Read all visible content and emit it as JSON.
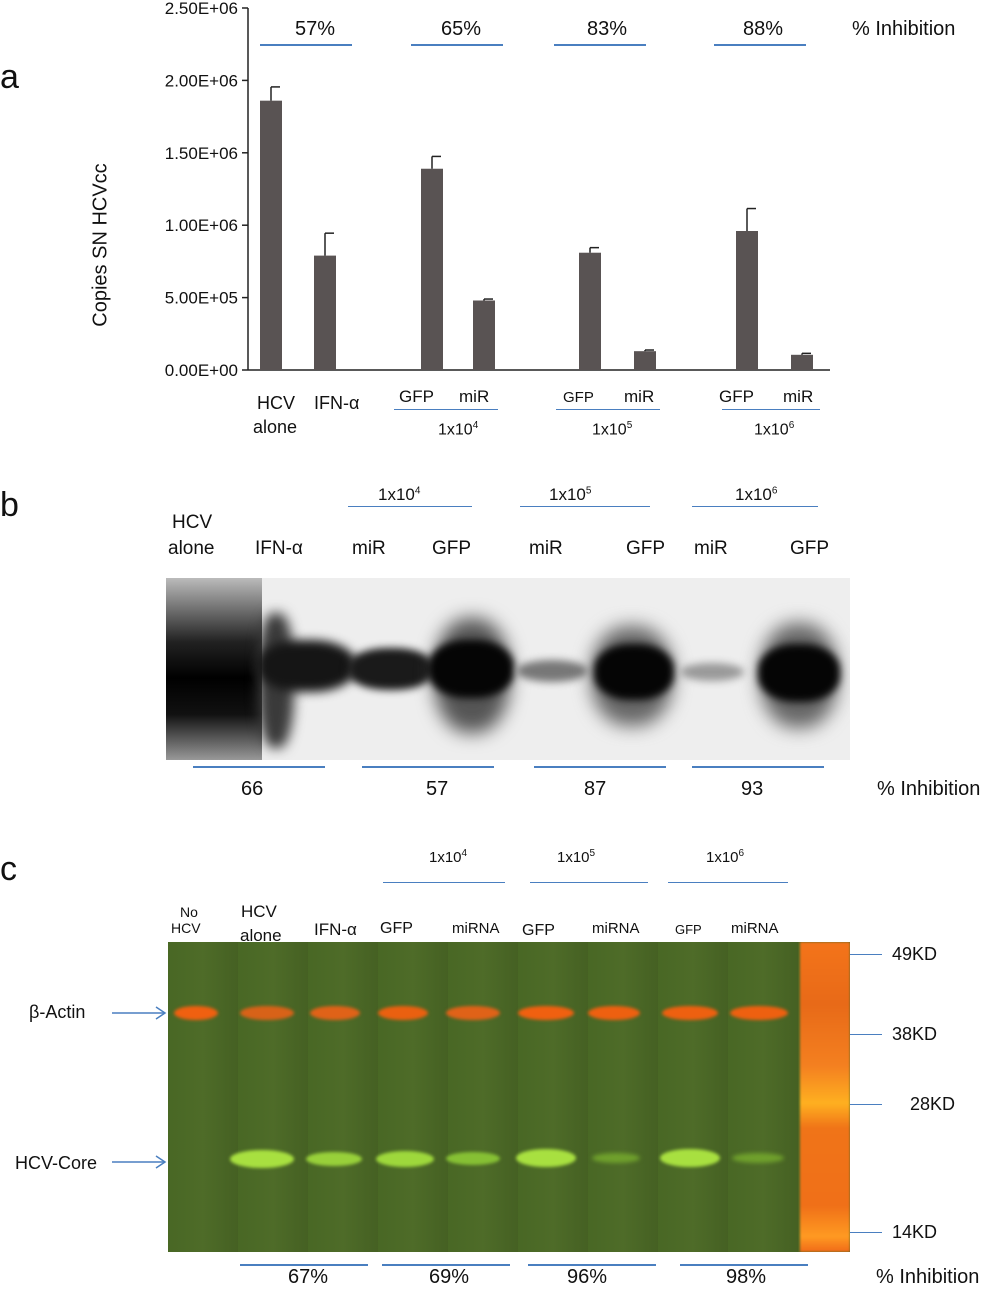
{
  "panel_a": {
    "letter": "a",
    "ylabel": "Copies SN HCVcc",
    "inhibition_title": "% Inhibition",
    "inhibition_groups": [
      "57%",
      "65%",
      "83%",
      "88%"
    ],
    "xlabels": {
      "hcv_alone_1": "HCV",
      "hcv_alone_2": "alone",
      "ifn": "IFN-α",
      "gfp1": "GFP",
      "mir1": "miR",
      "dose1_base": "1x10",
      "dose1_exp": "4",
      "gfp2": "GFP",
      "mir2": "miR",
      "dose2_base": "1x10",
      "dose2_exp": "5",
      "gfp3": "GFP",
      "mir3": "miR",
      "dose3_base": "1x10",
      "dose3_exp": "6"
    }
  },
  "chart_data": {
    "type": "bar",
    "ylabel": "Copies SN HCVcc",
    "ylim": [
      0,
      2500000
    ],
    "ytick_values": [
      0,
      500000,
      1000000,
      1500000,
      2000000,
      2500000
    ],
    "ytick_labels": [
      "0.00E+00",
      "5.00E+05",
      "1.00E+06",
      "1.50E+06",
      "2.00E+06",
      "2.50E+06"
    ],
    "categories": [
      "HCV alone",
      "IFN-α",
      "GFP 1x10^4",
      "miR 1x10^4",
      "GFP 1x10^5",
      "miR 1x10^5",
      "GFP 1x10^6",
      "miR 1x10^6"
    ],
    "values": [
      1860000,
      790000,
      1390000,
      480000,
      810000,
      130000,
      960000,
      105000
    ],
    "errors": [
      95000,
      155000,
      85000,
      10000,
      35000,
      8000,
      155000,
      10000
    ],
    "bar_color": "#595353",
    "grid": false
  },
  "panel_b": {
    "letter": "b",
    "hcv_1": "HCV",
    "hcv_2": "alone",
    "ifn": "IFN-α",
    "lanes": [
      "miR",
      "GFP",
      "miR",
      "GFP",
      "miR",
      "GFP"
    ],
    "doses": [
      {
        "base": "1x10",
        "exp": "4"
      },
      {
        "base": "1x10",
        "exp": "5"
      },
      {
        "base": "1x10",
        "exp": "6"
      }
    ],
    "inhibition_values": [
      "66",
      "57",
      "87",
      "93"
    ],
    "inhibition_title": "% Inhibition"
  },
  "panel_c": {
    "letter": "c",
    "doses": [
      {
        "base": "1x10",
        "exp": "4"
      },
      {
        "base": "1x10",
        "exp": "5"
      },
      {
        "base": "1x10",
        "exp": "6"
      }
    ],
    "lanes": {
      "no_hcv_1": "No",
      "no_hcv_2": "HCV",
      "hcv_1": "HCV",
      "hcv_2": "alone",
      "ifn": "IFN-α",
      "gfp1": "GFP",
      "mirna1": "miRNA",
      "gfp2": "GFP",
      "mirna2": "miRNA",
      "gfp3": "GFP",
      "mirna3": "miRNA"
    },
    "bands": {
      "actin": "β-Actin",
      "core": "HCV-Core"
    },
    "markers": [
      "49KD",
      "38KD",
      "28KD",
      "14KD"
    ],
    "inhibition_values": [
      "67%",
      "69%",
      "96%",
      "98%"
    ],
    "inhibition_title": "% Inhibition"
  }
}
